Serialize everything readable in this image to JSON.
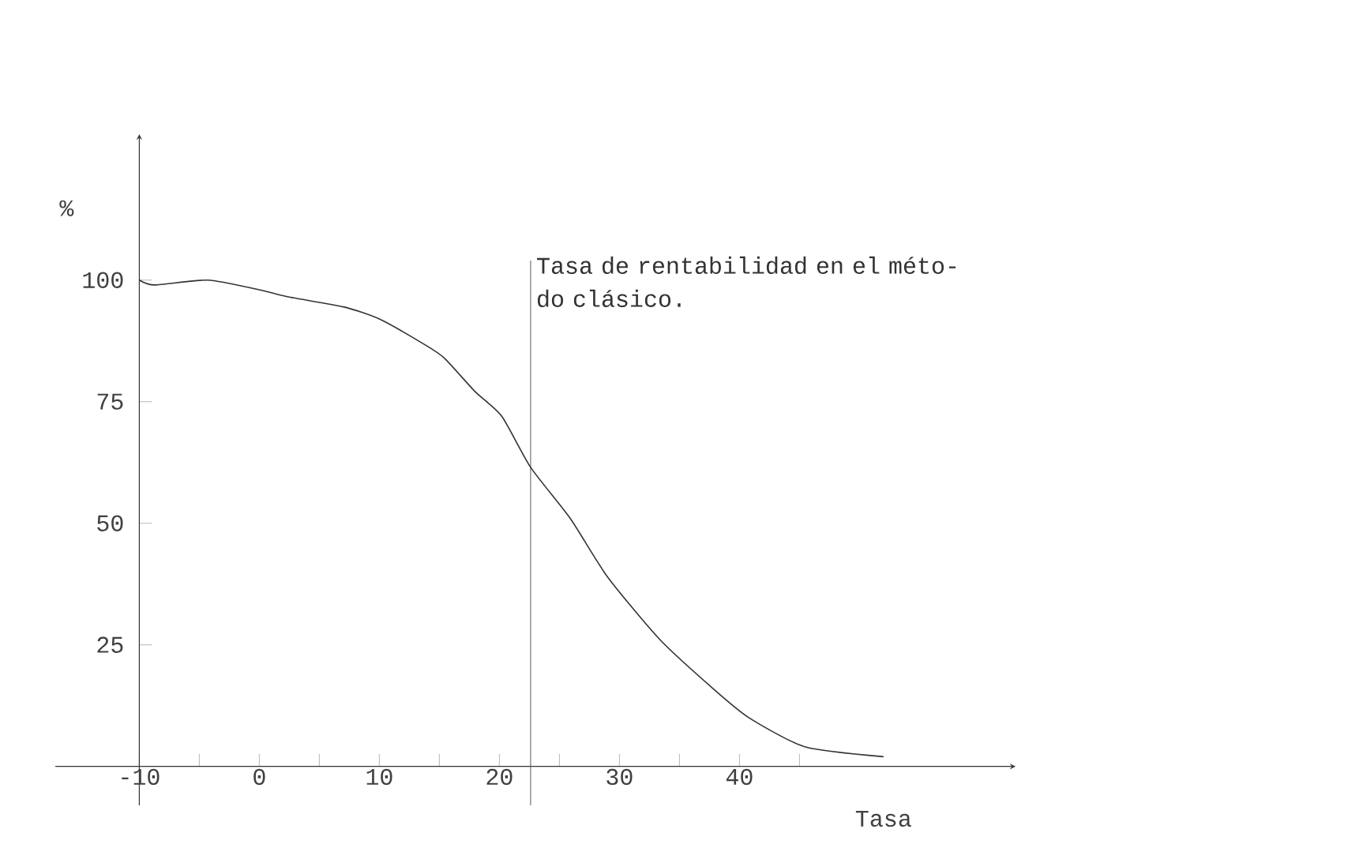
{
  "chart_data": {
    "type": "line",
    "xlabel": "Tasa",
    "ylabel": "%",
    "x": [
      -10,
      -8.7,
      -4.3,
      0,
      2.5,
      7,
      10,
      13.6,
      15.4,
      18,
      20.2,
      22.6,
      25.9,
      29,
      33.4,
      37.8,
      40.8,
      45.5,
      52
    ],
    "series": [
      {
        "color": "#333333",
        "values": [
          100,
          99,
          100,
          98,
          96.5,
          94.5,
          92,
          87,
          84,
          77,
          72,
          61.5,
          51,
          39,
          26,
          16,
          10,
          4,
          2
        ]
      }
    ],
    "xlim": [
      -17,
      63
    ],
    "ylim": [
      -8,
      130
    ],
    "xticks": [
      -10,
      {
        "value": -5,
        "label": null
      },
      0,
      {
        "value": 5,
        "label": null
      },
      10,
      {
        "value": 15,
        "label": null
      },
      20,
      {
        "value": 25,
        "label": null
      },
      30,
      {
        "value": 35,
        "label": null
      },
      40,
      {
        "value": 45,
        "label": null
      }
    ],
    "yticks": [
      25,
      50,
      75,
      100
    ],
    "ref_lines": [
      {
        "axis": "x",
        "value": 22.6,
        "label": "Tasa de rentabilidad en el méto-do clásico.",
        "color": "#555555"
      }
    ],
    "marker": "none",
    "line_style": "solid"
  }
}
